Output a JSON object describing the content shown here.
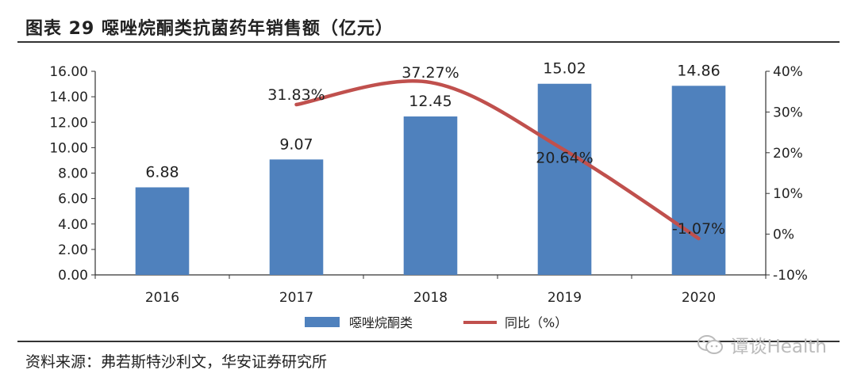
{
  "header": {
    "title": "图表 29 噁唑烷酮类抗菌药年销售额（亿元）"
  },
  "footer": {
    "source": "资料来源：弗若斯特沙利文，华安证券研究所"
  },
  "watermark": {
    "text": "谭谈Health"
  },
  "chart_data": {
    "type": "bar",
    "categories": [
      "2016",
      "2017",
      "2018",
      "2019",
      "2020"
    ],
    "series": [
      {
        "name": "噁唑烷酮类",
        "kind": "bar",
        "axis": "left",
        "values": [
          6.88,
          9.07,
          12.45,
          15.02,
          14.86
        ],
        "labels": [
          "6.88",
          "9.07",
          "12.45",
          "15.02",
          "14.86"
        ],
        "color": "#4f81bd"
      },
      {
        "name": "同比（%）",
        "kind": "line",
        "axis": "right",
        "values": [
          null,
          31.83,
          37.27,
          20.64,
          -1.07
        ],
        "labels": [
          "",
          "31.83%",
          "37.27%",
          "20.64%",
          "-1.07%"
        ],
        "color": "#c0504d"
      }
    ],
    "y_left": {
      "ylim": [
        0,
        16
      ],
      "ticks": [
        "0.00",
        "2.00",
        "4.00",
        "6.00",
        "8.00",
        "10.00",
        "12.00",
        "14.00",
        "16.00"
      ]
    },
    "y_right": {
      "ylim": [
        -10,
        40
      ],
      "ticks": [
        "-10%",
        "0%",
        "10%",
        "20%",
        "30%",
        "40%"
      ]
    },
    "grid": false,
    "legend": "bottom"
  }
}
